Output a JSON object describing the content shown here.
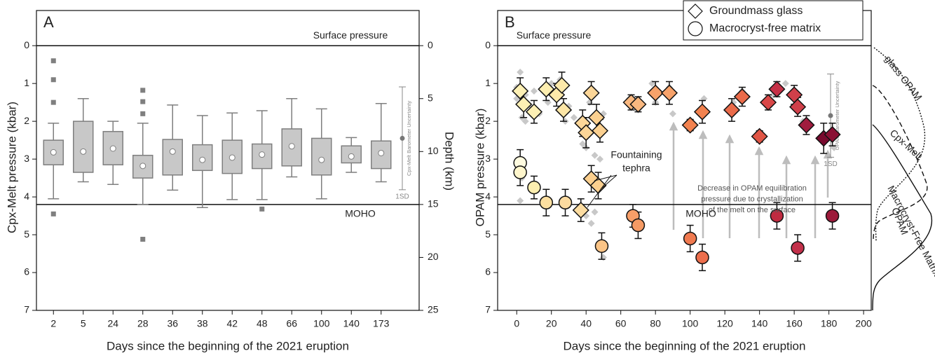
{
  "chart_data": [
    {
      "type": "box",
      "panel_label": "A",
      "x_label": "Days since the beginning of the 2021 eruption",
      "y_label": "Cpx-Melt pressure (kbar)",
      "y2_label": "Depth (km)",
      "categories": [
        "2",
        "5",
        "24",
        "28",
        "36",
        "38",
        "42",
        "48",
        "66",
        "100",
        "140",
        "173"
      ],
      "whisker_low": [
        2.05,
        1.4,
        2.0,
        2.05,
        1.57,
        1.85,
        1.78,
        1.72,
        1.4,
        1.67,
        2.43,
        1.53
      ],
      "q1": [
        2.5,
        2.0,
        2.27,
        2.9,
        2.48,
        2.62,
        2.5,
        2.6,
        2.2,
        2.45,
        2.65,
        2.52
      ],
      "q3": [
        3.15,
        3.35,
        3.15,
        3.5,
        3.42,
        3.3,
        3.38,
        3.25,
        3.18,
        3.42,
        3.1,
        3.25
      ],
      "whisker_high": [
        4.05,
        3.6,
        3.67,
        4.2,
        3.82,
        4.28,
        4.07,
        4.07,
        3.47,
        4.05,
        3.35,
        3.6
      ],
      "mean": [
        2.82,
        2.8,
        2.72,
        3.18,
        2.8,
        3.02,
        2.96,
        2.88,
        2.66,
        3.02,
        2.93,
        2.84
      ],
      "outliers": [
        [
          0.4,
          0.9,
          1.5,
          4.45
        ],
        [],
        [],
        [
          1.18,
          1.48,
          1.8,
          5.12
        ],
        [],
        [],
        [],
        [
          4.32
        ],
        [],
        [],
        [],
        []
      ],
      "color": "#c8c8c8",
      "edge_color": "#7f7f7f",
      "ylim": [
        7,
        -0.93
      ],
      "yticks": [
        0,
        1,
        2,
        3,
        4,
        5,
        6,
        7
      ],
      "y2lim": [
        25,
        -3.32
      ],
      "y2ticks": [
        0,
        5,
        10,
        15,
        20,
        25
      ],
      "reference_lines": [
        {
          "value": 0,
          "label": "Surface pressure"
        },
        {
          "value": 4.2,
          "label": "MOHO"
        }
      ],
      "uncertainty": {
        "label": "Cpx-Melt Barometer Uncertainty",
        "value": 2.45,
        "error": 1.36,
        "sd_label": "1SD"
      }
    },
    {
      "type": "scatter",
      "panel_label": "B",
      "x_label": "Days since the beginning of the 2021 eruption",
      "y_label": "OPAM pressure (kbar)",
      "xlim": [
        -11,
        204.4
      ],
      "xticks": [
        0,
        20,
        40,
        60,
        80,
        100,
        120,
        140,
        160,
        180,
        200
      ],
      "ylim": [
        7,
        -0.93
      ],
      "yticks": [
        0,
        1,
        2,
        3,
        4,
        5,
        6,
        7
      ],
      "legend": "top",
      "analyses": {
        "color": "#c8c8c8",
        "x": [
          0,
          0,
          2,
          3,
          5,
          5,
          8,
          10,
          13,
          18,
          20,
          25,
          28,
          30,
          33,
          38,
          40,
          42,
          45,
          48,
          50,
          65,
          70,
          78,
          80,
          88,
          90,
          100,
          108,
          125,
          130,
          140,
          148,
          155,
          160,
          165,
          178,
          183,
          2,
          3,
          40,
          43,
          45,
          48,
          50
        ],
        "values": [
          1.1,
          1.4,
          0.7,
          1.9,
          1.3,
          2.0,
          1.6,
          1.2,
          1.8,
          1.5,
          1.0,
          0.9,
          2.0,
          1.6,
          1.9,
          2.6,
          2.7,
          1.5,
          2.9,
          2.2,
          1.8,
          1.4,
          1.7,
          1.0,
          1.5,
          1.1,
          1.8,
          2.2,
          1.4,
          1.5,
          1.2,
          2.3,
          1.3,
          1.0,
          1.2,
          2.0,
          2.5,
          2.7,
          4.1,
          3.5,
          4.5,
          4.7,
          4.4,
          3.0,
          5.6
        ]
      },
      "series": [
        {
          "name": "Groundmass glass",
          "marker": "diamond",
          "x": [
            2,
            4,
            10,
            17,
            23,
            26,
            27,
            37,
            38,
            40,
            43,
            46,
            48,
            43,
            47,
            66,
            70,
            80,
            88,
            100,
            107,
            124,
            130,
            140,
            145,
            150,
            160,
            162,
            167,
            177,
            182
          ],
          "values": [
            1.2,
            1.55,
            1.75,
            1.15,
            1.3,
            1.05,
            1.7,
            4.35,
            2.05,
            2.3,
            1.25,
            1.9,
            2.25,
            3.52,
            3.7,
            1.5,
            1.55,
            1.25,
            1.25,
            2.1,
            1.75,
            1.7,
            1.35,
            2.4,
            1.5,
            1.15,
            1.3,
            1.62,
            2.1,
            2.45,
            2.35
          ],
          "errors": [
            0.35,
            0.35,
            0.3,
            0.3,
            0.3,
            0.35,
            0.3,
            0.3,
            0.35,
            0.4,
            0.3,
            0.35,
            0.3,
            0.35,
            0.35,
            0.2,
            0.2,
            0.3,
            0.3,
            0.15,
            0.3,
            0.3,
            0.25,
            0.15,
            0.2,
            0.2,
            0.25,
            0.25,
            0.25,
            0.4,
            0.3
          ],
          "colors": [
            "#fdf0b4",
            "#fdf0b4",
            "#fdf0b4",
            "#fdeeb0",
            "#fde9aa",
            "#fde9aa",
            "#fde6a6",
            "#fcdca0",
            "#fcd698",
            "#fcd698",
            "#fcd698",
            "#fbd090",
            "#fbd090",
            "#fbcf8e",
            "#fbcf8e",
            "#f9b880",
            "#f9b880",
            "#f7a26a",
            "#f7a26a",
            "#f2824f",
            "#f2824f",
            "#ea6b4a",
            "#ea6b4a",
            "#e05545",
            "#d94848",
            "#c53046",
            "#d0404a",
            "#d0404a",
            "#a01c3e",
            "#780a2e",
            "#8a1034"
          ]
        },
        {
          "name": "Macrocryst-free matrix",
          "marker": "circle",
          "x": [
            2,
            2,
            10,
            17,
            28,
            49,
            67,
            70,
            100,
            107,
            150,
            162,
            182
          ],
          "values": [
            3.1,
            3.35,
            3.75,
            4.15,
            4.15,
            5.3,
            4.5,
            4.75,
            5.1,
            5.6,
            4.5,
            5.35,
            4.5
          ],
          "errors": [
            0.35,
            0.35,
            0.3,
            0.35,
            0.35,
            0.35,
            0.3,
            0.35,
            0.35,
            0.35,
            0.35,
            0.35,
            0.35
          ],
          "colors": [
            "#fffbe0",
            "#fff6cc",
            "#fdefb0",
            "#fcdfa0",
            "#fcdba0",
            "#fbc486",
            "#f79e68",
            "#f59a64",
            "#f07a50",
            "#ec6e4c",
            "#c02a40",
            "#c2304a",
            "#9c1a3a"
          ]
        }
      ],
      "reference_lines": [
        {
          "value": 0,
          "label": "Surface pressure"
        },
        {
          "value": 4.2,
          "label": "MOHO"
        }
      ],
      "uncertainty": {
        "label": "OPAM Barometer Uncertainty",
        "value": 1.85,
        "error": 1.1,
        "sd_label": "1SD"
      },
      "annotations": [
        {
          "lines": [
            "Fountaining",
            "tephra"
          ]
        },
        {
          "lines": [
            "Decrease in OPAM equilibration",
            "pressure due to crystallization",
            "of the melt on the surface"
          ]
        }
      ]
    }
  ],
  "side_curves": {
    "labels": [
      "glass OPAM",
      "Cpx-Melt",
      "Macrocryst-Free Matrix",
      "OPAM"
    ]
  }
}
